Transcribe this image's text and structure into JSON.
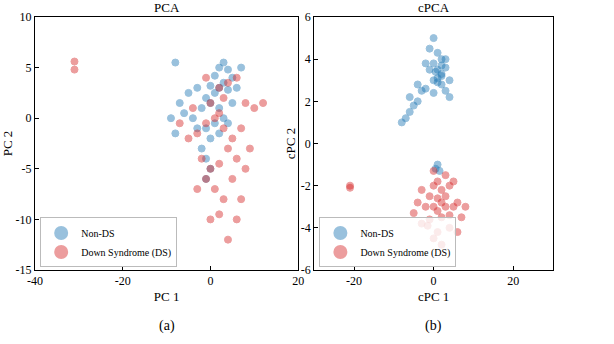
{
  "chart_data": [
    {
      "type": "scatter",
      "title": "PCA",
      "x_label": "PC 1",
      "y_label": "PC 2",
      "caption": "(a)",
      "xlim": [
        -40,
        20
      ],
      "xticks": [
        -40,
        -20,
        0,
        20
      ],
      "ylim": [
        -15,
        10
      ],
      "yticks": [
        -15,
        -10,
        -5,
        0,
        5,
        10
      ],
      "grid": false,
      "legend": "lower left",
      "marker": "circle",
      "series": [
        {
          "name": "Non-DS",
          "color": "#1f77b4",
          "x": [
            2,
            3,
            4,
            1,
            5,
            3,
            2,
            0,
            1,
            4,
            -1,
            -3,
            -5,
            -8,
            -7,
            -9,
            -8,
            -6,
            -4,
            -2,
            0,
            2,
            3,
            1,
            -1,
            0,
            -2,
            -1,
            0,
            -1,
            5,
            6,
            7,
            2,
            4,
            -3
          ],
          "values": [
            5,
            5.5,
            4.8,
            4.2,
            4,
            3.5,
            3,
            3.2,
            2.5,
            2.8,
            2,
            3,
            2.5,
            5.5,
            1.5,
            0,
            -1.5,
            0.5,
            0,
            1,
            1.5,
            1,
            0,
            -0.5,
            -1,
            -2,
            -3,
            -4,
            -5,
            -6,
            1.5,
            3,
            5,
            -1.5,
            -0.5,
            -1
          ]
        },
        {
          "name": "Down Syndrome (DS)",
          "color": "#d62728",
          "x": [
            -31,
            -31,
            2,
            4,
            6,
            8,
            10,
            12,
            7,
            5,
            3,
            1,
            -1,
            -3,
            -5,
            -7,
            -4,
            0,
            2,
            4,
            6,
            2,
            0,
            -2,
            -1,
            1,
            3,
            5,
            7,
            6,
            2,
            0,
            4,
            -3,
            8,
            9,
            -1,
            3
          ],
          "values": [
            5.6,
            4.8,
            3,
            3.5,
            4,
            1.5,
            1,
            1.5,
            -1,
            -2,
            -1,
            0,
            -0.5,
            -1.5,
            -2,
            -0.5,
            1,
            1.5,
            0.5,
            -3,
            -4,
            -4.5,
            -5,
            -4,
            -6,
            -7,
            -8,
            -6,
            -8,
            -10,
            -9.5,
            -10,
            -12,
            -7,
            -5,
            -3,
            4,
            2
          ]
        }
      ]
    },
    {
      "type": "scatter",
      "title": "cPCA",
      "x_label": "cPC 1",
      "y_label": "cPC 2",
      "caption": "(b)",
      "xlim": [
        -30,
        30
      ],
      "xticks": [
        -20,
        0,
        20
      ],
      "ylim": [
        -6,
        6
      ],
      "yticks": [
        -6,
        -4,
        -2,
        0,
        2,
        4,
        6
      ],
      "grid": false,
      "legend": "lower left",
      "marker": "circle",
      "series": [
        {
          "name": "Non-DS",
          "color": "#1f77b4",
          "x": [
            0,
            1,
            2,
            0,
            1,
            2,
            3,
            4,
            2,
            1,
            -1,
            0,
            3,
            1,
            2,
            -2,
            -3,
            -4,
            -5,
            -6,
            -7,
            -8,
            -6,
            -4,
            -2,
            0,
            3,
            4,
            1,
            1.5,
            0.5,
            2,
            0.5,
            -1
          ],
          "values": [
            5,
            4.3,
            4,
            3.8,
            3.5,
            3.3,
            3.6,
            3,
            2.8,
            2.9,
            3.5,
            3,
            4,
            3.1,
            3.7,
            3.8,
            2.5,
            2,
            1.8,
            1.5,
            1.2,
            1,
            2.2,
            2.8,
            2.6,
            2.4,
            2.5,
            2.2,
            -1,
            -1.3,
            -1.2,
            3.2,
            3.4,
            4.5
          ]
        },
        {
          "name": "Down Syndrome (DS)",
          "color": "#d62728",
          "x": [
            -21,
            -21,
            0,
            1,
            2,
            3,
            4,
            5,
            6,
            7,
            -1,
            -2,
            -3,
            -4,
            -5,
            0,
            1,
            2,
            3,
            4,
            1,
            0,
            -1.5,
            -1,
            2,
            3,
            5,
            6,
            8,
            -3,
            0,
            1,
            2,
            4
          ],
          "values": [
            -2,
            -2.1,
            -2,
            -1.8,
            -2.2,
            -2.5,
            -2,
            -3,
            -2.8,
            -3.5,
            -2.5,
            -3,
            -2.2,
            -2.8,
            -3.3,
            -3,
            -3.2,
            -3.5,
            -3,
            -4,
            -4.2,
            -4.5,
            -3.9,
            -3.6,
            -2.8,
            -1.5,
            -1.8,
            -4.2,
            -3,
            -3.8,
            -1.3,
            -2.6,
            -4.8,
            -3.4
          ]
        }
      ]
    }
  ]
}
